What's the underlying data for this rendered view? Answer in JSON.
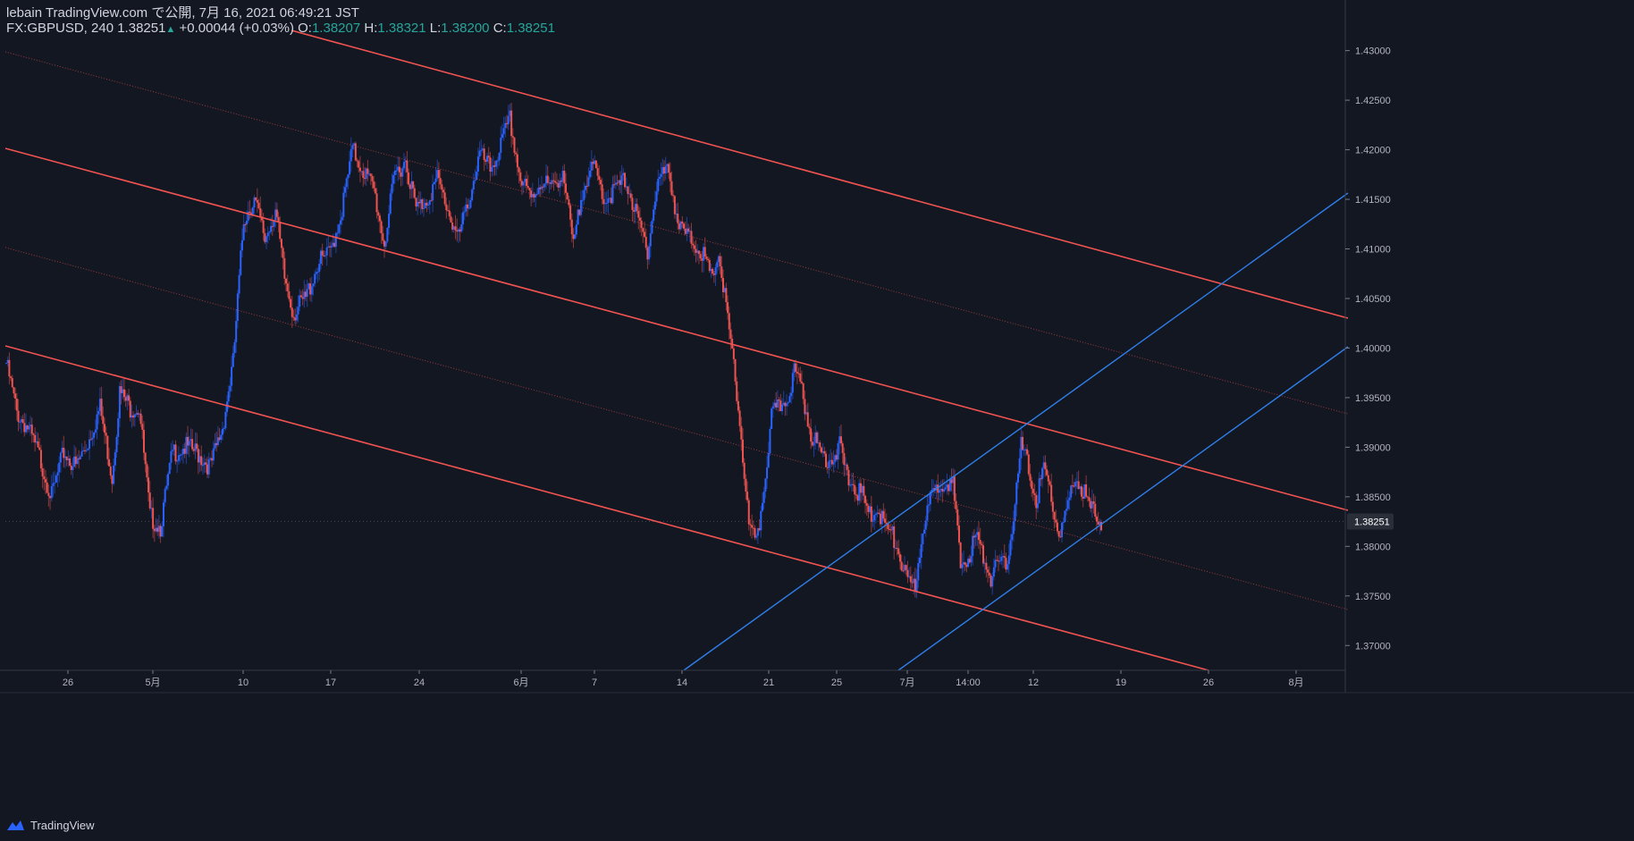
{
  "header": {
    "publisher": "lebain TradingView.com で公開, 7月 16, 2021 06:49:21 JST",
    "symbol": "FX:GBPUSD, 240",
    "last": "1.38251",
    "change_arrow": "▲",
    "change": "+0.00044 (+0.03%)",
    "open_label": "O:",
    "open": "1.38207",
    "high_label": "H:",
    "high": "1.38321",
    "low_label": "L:",
    "low": "1.38200",
    "close_label": "C:",
    "close": "1.38251"
  },
  "footer": {
    "brand": "TradingView"
  },
  "colors": {
    "background": "#131722",
    "up": "#2962ff",
    "down": "#ef5350",
    "channel": "#f05350",
    "trend": "#2f7ee8",
    "axis_text": "#b2b5be",
    "price_tag_bg": "#2a2e39"
  },
  "chart_data": {
    "type": "candlestick",
    "symbol": "FX:GBPUSD",
    "timeframe": "240",
    "y_axis": {
      "range": [
        1.3675,
        1.4315
      ],
      "ticks": [
        "1.37000",
        "1.37500",
        "1.38000",
        "1.38500",
        "1.39000",
        "1.39500",
        "1.40000",
        "1.40500",
        "1.41000",
        "1.41500",
        "1.42000",
        "1.42500",
        "1.43000"
      ],
      "current_price": "1.38251"
    },
    "x_axis": {
      "ticks": [
        "26",
        "5月",
        "10",
        "17",
        "24",
        "6月",
        "7",
        "14",
        "21",
        "25",
        "7月",
        "14:00",
        "12",
        "19",
        "26",
        "8月"
      ]
    },
    "ohlc_anchors": [
      [
        0,
        1.3985
      ],
      [
        7,
        1.3935
      ],
      [
        14,
        1.392
      ],
      [
        22,
        1.389
      ],
      [
        30,
        1.385
      ],
      [
        38,
        1.3895
      ],
      [
        46,
        1.388
      ],
      [
        54,
        1.3905
      ],
      [
        62,
        1.394
      ],
      [
        70,
        1.387
      ],
      [
        75,
        1.3955
      ],
      [
        82,
        1.394
      ],
      [
        88,
        1.394
      ],
      [
        95,
        1.383
      ],
      [
        102,
        1.382
      ],
      [
        110,
        1.3895
      ],
      [
        118,
        1.39
      ],
      [
        126,
        1.3895
      ],
      [
        135,
        1.388
      ],
      [
        143,
        1.392
      ],
      [
        150,
        1.3985
      ],
      [
        157,
        1.413
      ],
      [
        164,
        1.415
      ],
      [
        171,
        1.411
      ],
      [
        178,
        1.414
      ],
      [
        184,
        1.407
      ],
      [
        190,
        1.4035
      ],
      [
        198,
        1.405
      ],
      [
        206,
        1.4085
      ],
      [
        214,
        1.4095
      ],
      [
        222,
        1.414
      ],
      [
        229,
        1.42
      ],
      [
        236,
        1.418
      ],
      [
        243,
        1.416
      ],
      [
        250,
        1.4105
      ],
      [
        257,
        1.4175
      ],
      [
        264,
        1.419
      ],
      [
        271,
        1.414
      ],
      [
        278,
        1.415
      ],
      [
        285,
        1.417
      ],
      [
        292,
        1.414
      ],
      [
        299,
        1.411
      ],
      [
        306,
        1.415
      ],
      [
        313,
        1.4195
      ],
      [
        320,
        1.418
      ],
      [
        326,
        1.42
      ],
      [
        333,
        1.423
      ],
      [
        340,
        1.417
      ],
      [
        347,
        1.415
      ],
      [
        354,
        1.417
      ],
      [
        361,
        1.416
      ],
      [
        368,
        1.418
      ],
      [
        375,
        1.41
      ],
      [
        382,
        1.417
      ],
      [
        389,
        1.418
      ],
      [
        396,
        1.415
      ],
      [
        403,
        1.416
      ],
      [
        410,
        1.417
      ],
      [
        417,
        1.413
      ],
      [
        424,
        1.41
      ],
      [
        431,
        1.417
      ],
      [
        438,
        1.418
      ],
      [
        445,
        1.412
      ],
      [
        452,
        1.411
      ],
      [
        459,
        1.41
      ],
      [
        466,
        1.407
      ],
      [
        471,
        1.4095
      ],
      [
        476,
        1.404
      ],
      [
        481,
        1.398
      ],
      [
        486,
        1.391
      ],
      [
        491,
        1.382
      ],
      [
        496,
        1.38
      ],
      [
        501,
        1.386
      ],
      [
        506,
        1.393
      ],
      [
        511,
        1.394
      ],
      [
        516,
        1.395
      ],
      [
        521,
        1.3975
      ],
      [
        526,
        1.396
      ],
      [
        531,
        1.392
      ],
      [
        536,
        1.39
      ],
      [
        541,
        1.389
      ],
      [
        546,
        1.389
      ],
      [
        551,
        1.39
      ],
      [
        556,
        1.387
      ],
      [
        561,
        1.386
      ],
      [
        566,
        1.385
      ],
      [
        571,
        1.383
      ],
      [
        576,
        1.384
      ],
      [
        581,
        1.382
      ],
      [
        586,
        1.381
      ],
      [
        591,
        1.379
      ],
      [
        596,
        1.376
      ],
      [
        601,
        1.376
      ],
      [
        606,
        1.382
      ],
      [
        611,
        1.3845
      ],
      [
        616,
        1.386
      ],
      [
        621,
        1.387
      ],
      [
        626,
        1.386
      ],
      [
        631,
        1.378
      ],
      [
        636,
        1.379
      ],
      [
        641,
        1.381
      ],
      [
        646,
        1.379
      ],
      [
        651,
        1.377
      ],
      [
        656,
        1.378
      ],
      [
        661,
        1.378
      ],
      [
        666,
        1.383
      ],
      [
        671,
        1.39
      ],
      [
        676,
        1.388
      ],
      [
        681,
        1.3845
      ],
      [
        686,
        1.388
      ],
      [
        691,
        1.385
      ],
      [
        696,
        1.381
      ],
      [
        701,
        1.383
      ],
      [
        706,
        1.387
      ],
      [
        711,
        1.386
      ],
      [
        716,
        1.384
      ],
      [
        721,
        1.383
      ],
      [
        724,
        1.3825
      ]
    ]
  }
}
